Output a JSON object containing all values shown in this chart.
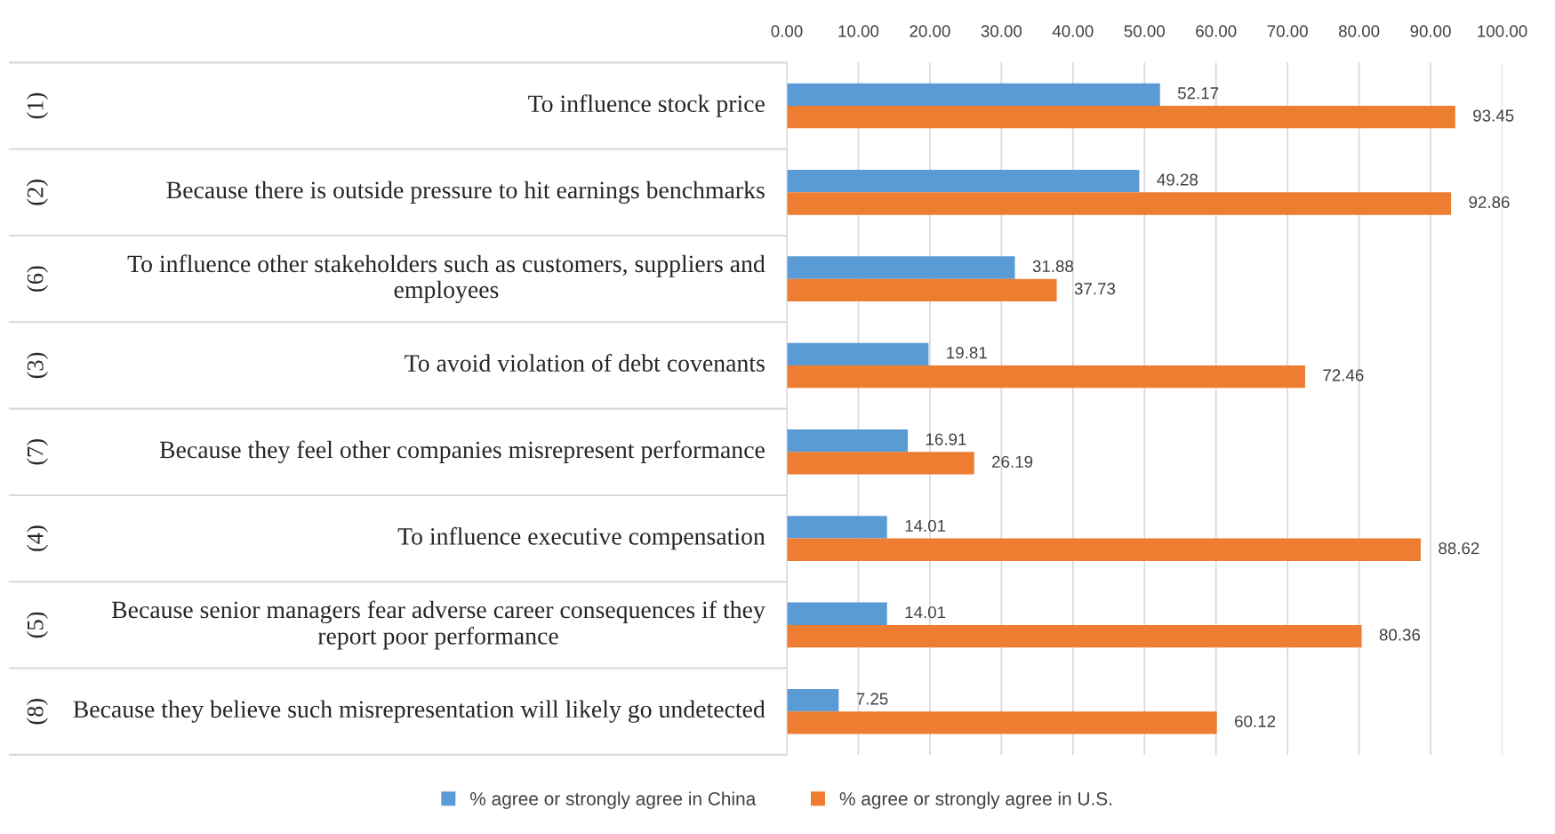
{
  "chart_data": {
    "type": "bar",
    "orientation": "horizontal",
    "categories": [
      "To influence stock price",
      "Because there is outside pressure to hit earnings benchmarks",
      "To influence other stakeholders such as customers, suppliers and employees",
      "To avoid violation of debt covenants",
      "Because they feel other companies misrepresent performance",
      "To influence executive compensation",
      "Because senior managers fear adverse career consequences if they report poor performance",
      "Because they believe such misrepresentation will likely go undetected"
    ],
    "series": [
      {
        "name": "% agree or strongly agree in China",
        "color": "#5b9bd5",
        "values": [
          52.17,
          49.28,
          31.88,
          19.81,
          16.91,
          14.01,
          14.01,
          7.25
        ]
      },
      {
        "name": "% agree or strongly agree in U.S.",
        "color": "#ed7d31",
        "values": [
          93.45,
          92.86,
          37.73,
          72.46,
          26.19,
          88.62,
          80.36,
          60.12
        ]
      }
    ],
    "annotations": [
      "(1)",
      "(2)",
      "(6)",
      "(3)",
      "(7)",
      "(4)",
      "(5)",
      "(8)"
    ],
    "xlim": [
      0,
      100
    ],
    "xticks": [
      {
        "value": 0,
        "label": "0.00"
      },
      {
        "value": 10,
        "label": "10.00"
      },
      {
        "value": 20,
        "label": "20.00"
      },
      {
        "value": 30,
        "label": "30.00"
      },
      {
        "value": 40,
        "label": "40.00"
      },
      {
        "value": 50,
        "label": "50.00"
      },
      {
        "value": 60,
        "label": "60.00"
      },
      {
        "value": 70,
        "label": "70.00"
      },
      {
        "value": 80,
        "label": "80.00"
      },
      {
        "value": 90,
        "label": "90.00"
      },
      {
        "value": 100,
        "label": "100.00"
      }
    ],
    "grid": "x",
    "legend": "bottom",
    "data_labels": true
  }
}
